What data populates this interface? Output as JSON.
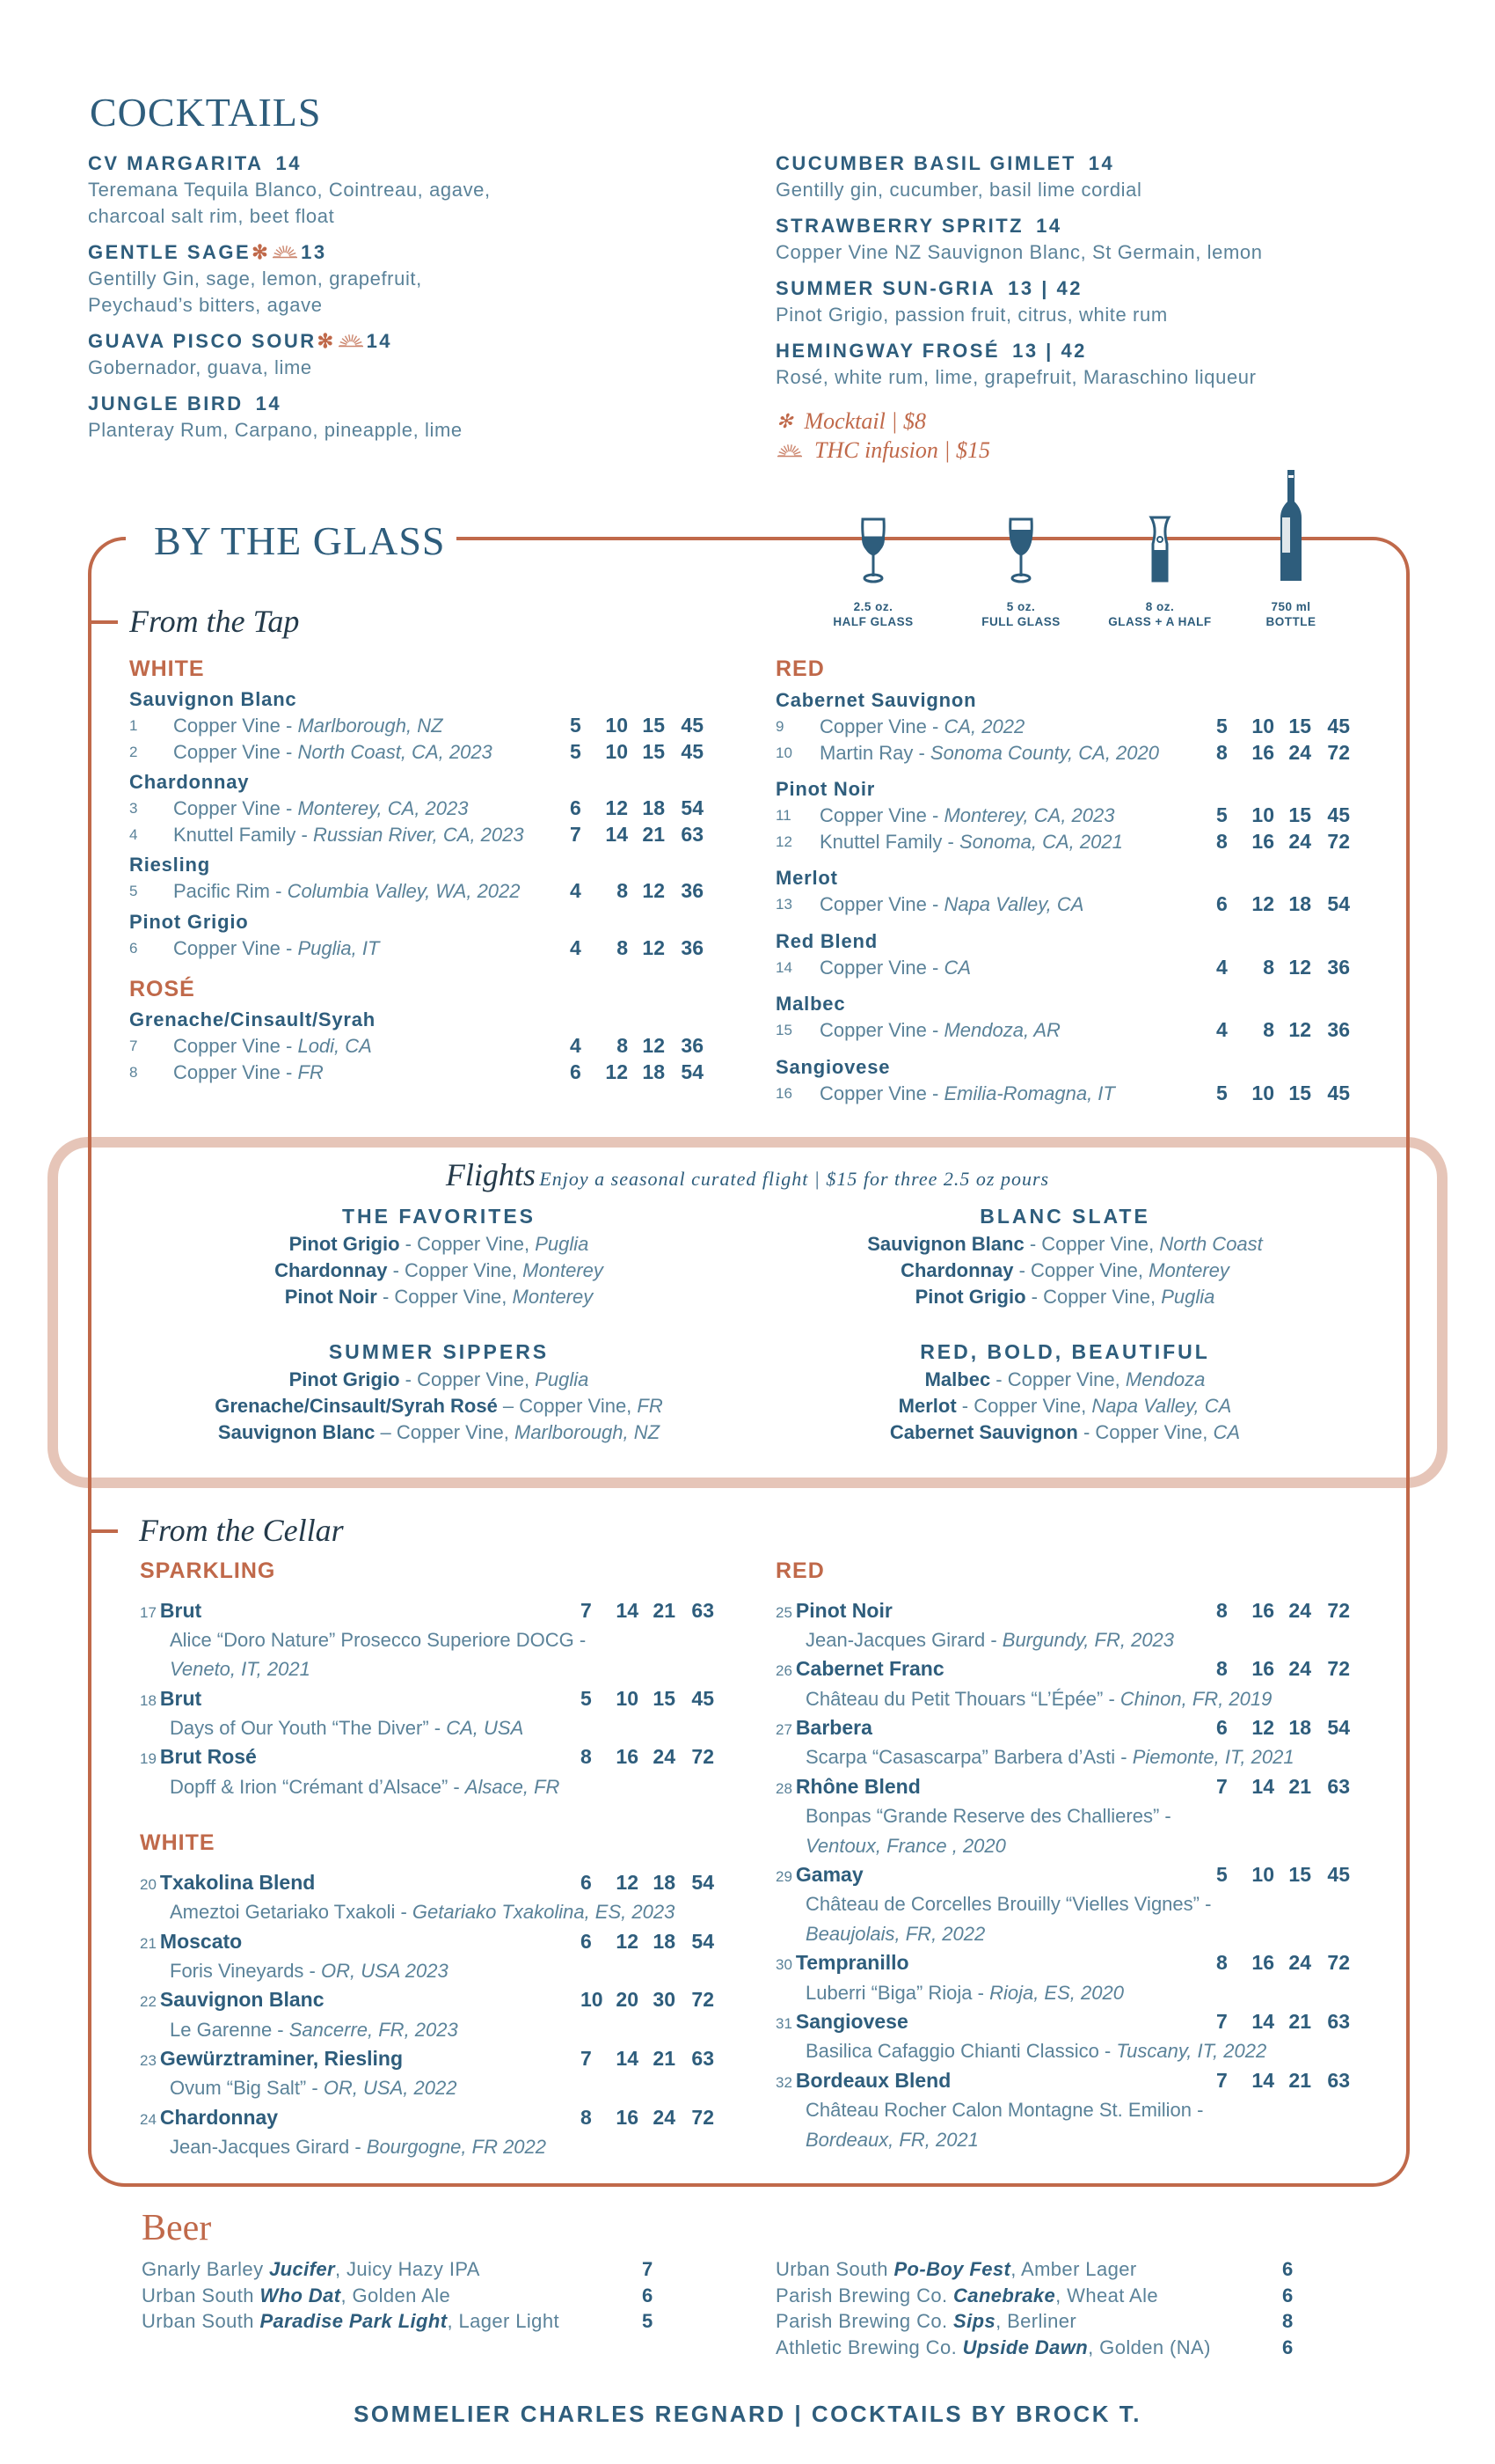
{
  "colors": {
    "blue": "#2e5d7c",
    "copper": "#c0694a",
    "flight_border": "#e6c5b8"
  },
  "cocktails": {
    "title": "COCKTAILS",
    "left": [
      {
        "name": "CV MARGARITA",
        "markers": [],
        "price": "14",
        "desc": [
          "Teremana Tequila Blanco, Cointreau, agave,",
          "charcoal salt rim, beet float"
        ]
      },
      {
        "name": "GENTLE SAGE",
        "markers": [
          "mocktail",
          "thc"
        ],
        "price": "13",
        "desc": [
          "Gentilly Gin, sage, lemon, grapefruit,",
          "Peychaud’s bitters, agave"
        ]
      },
      {
        "name": "GUAVA PISCO SOUR",
        "markers": [
          "mocktail",
          "thc"
        ],
        "price": "14",
        "desc": [
          "Gobernador, guava, lime"
        ]
      },
      {
        "name": "JUNGLE BIRD",
        "markers": [],
        "price": "14",
        "desc": [
          "Planteray Rum, Carpano, pineapple, lime"
        ]
      }
    ],
    "right": [
      {
        "name": "CUCUMBER BASIL GIMLET",
        "markers": [],
        "price": "14",
        "desc": [
          "Gentilly gin, cucumber, basil lime cordial"
        ]
      },
      {
        "name": "STRAWBERRY SPRITZ",
        "markers": [],
        "price": "14",
        "desc": [
          "Copper Vine NZ Sauvignon Blanc, St Germain, lemon"
        ]
      },
      {
        "name": "SUMMER SUN-GRIA",
        "markers": [],
        "price": "13 | 42",
        "desc": [
          "Pinot Grigio, passion fruit, citrus, white rum"
        ]
      },
      {
        "name": "HEMINGWAY FROSÉ",
        "markers": [],
        "price": "13 | 42",
        "desc": [
          "Rosé, white rum, lime, grapefruit, Maraschino liqueur"
        ]
      }
    ],
    "legend": [
      {
        "icon": "mocktail",
        "text": "Mocktail | $8"
      },
      {
        "icon": "thc",
        "text": "THC infusion | $15"
      }
    ]
  },
  "by_the_glass": {
    "title": "BY THE GLASS",
    "pours": [
      {
        "icon": "half-glass",
        "size": "2.5 oz.",
        "label": "HALF GLASS",
        "fill": 0.35
      },
      {
        "icon": "full-glass",
        "size": "5 oz.",
        "label": "FULL GLASS",
        "fill": 0.6
      },
      {
        "icon": "carafe",
        "size": "8 oz.",
        "label": "GLASS + A HALF",
        "fill": 0.8
      },
      {
        "icon": "bottle",
        "size": "750 ml",
        "label": "BOTTLE",
        "fill": 1
      }
    ],
    "tap": {
      "title": "From the Tap",
      "left": [
        {
          "category": "WHITE",
          "varietals": [
            {
              "name": "Sauvignon Blanc",
              "rows": [
                {
                  "num": "1",
                  "producer": "Copper Vine - ",
                  "region": "Marlborough, NZ",
                  "prices": [
                    5,
                    10,
                    15,
                    45
                  ]
                },
                {
                  "num": "2",
                  "producer": "Copper Vine - ",
                  "region": "North Coast, CA, 2023",
                  "prices": [
                    5,
                    10,
                    15,
                    45
                  ]
                }
              ]
            },
            {
              "name": "Chardonnay",
              "rows": [
                {
                  "num": "3",
                  "producer": "Copper Vine - ",
                  "region": "Monterey, CA, 2023",
                  "prices": [
                    6,
                    12,
                    18,
                    54
                  ]
                },
                {
                  "num": "4",
                  "producer": "Knuttel Family - ",
                  "region": "Russian River, CA, 2023",
                  "prices": [
                    7,
                    14,
                    21,
                    63
                  ]
                }
              ]
            },
            {
              "name": "Riesling",
              "rows": [
                {
                  "num": "5",
                  "producer": "Pacific Rim - ",
                  "region": "Columbia Valley, WA, 2022",
                  "prices": [
                    4,
                    8,
                    12,
                    36
                  ]
                }
              ]
            },
            {
              "name": "Pinot Grigio",
              "rows": [
                {
                  "num": "6",
                  "producer": "Copper Vine - ",
                  "region": "Puglia, IT",
                  "prices": [
                    4,
                    8,
                    12,
                    36
                  ]
                }
              ]
            }
          ]
        },
        {
          "category": "ROSÉ",
          "varietals": [
            {
              "name": "Grenache/Cinsault/Syrah",
              "rows": [
                {
                  "num": "7",
                  "producer": "Copper Vine - ",
                  "region": "Lodi, CA",
                  "prices": [
                    4,
                    8,
                    12,
                    36
                  ]
                },
                {
                  "num": "8",
                  "producer": "Copper Vine - ",
                  "region": "FR",
                  "prices": [
                    6,
                    12,
                    18,
                    54
                  ]
                }
              ]
            }
          ]
        }
      ],
      "right": [
        {
          "category": "RED",
          "varietals": [
            {
              "name": "Cabernet Sauvignon",
              "rows": [
                {
                  "num": "9",
                  "producer": "Copper Vine - ",
                  "region": "CA, 2022",
                  "prices": [
                    5,
                    10,
                    15,
                    45
                  ]
                },
                {
                  "num": "10",
                  "producer": "Martin Ray - ",
                  "region": "Sonoma County, CA, 2020",
                  "prices": [
                    8,
                    16,
                    24,
                    72
                  ]
                }
              ]
            },
            {
              "name": "Pinot Noir",
              "rows": [
                {
                  "num": "11",
                  "producer": "Copper Vine - ",
                  "region": "Monterey, CA, 2023",
                  "prices": [
                    5,
                    10,
                    15,
                    45
                  ]
                },
                {
                  "num": "12",
                  "producer": "Knuttel Family - ",
                  "region": "Sonoma, CA, 2021",
                  "prices": [
                    8,
                    16,
                    24,
                    72
                  ]
                }
              ]
            },
            {
              "name": "Merlot",
              "rows": [
                {
                  "num": "13",
                  "producer": "Copper Vine - ",
                  "region": "Napa Valley, CA",
                  "prices": [
                    6,
                    12,
                    18,
                    54
                  ]
                }
              ]
            },
            {
              "name": "Red Blend",
              "rows": [
                {
                  "num": "14",
                  "producer": "Copper Vine - ",
                  "region": "CA",
                  "prices": [
                    4,
                    8,
                    12,
                    36
                  ]
                }
              ]
            },
            {
              "name": "Malbec",
              "rows": [
                {
                  "num": "15",
                  "producer": "Copper Vine - ",
                  "region": "Mendoza, AR",
                  "prices": [
                    4,
                    8,
                    12,
                    36
                  ]
                }
              ]
            },
            {
              "name": "Sangiovese",
              "rows": [
                {
                  "num": "16",
                  "producer": "Copper Vine - ",
                  "region": "Emilia-Romagna, IT",
                  "prices": [
                    5,
                    10,
                    15,
                    45
                  ]
                }
              ]
            }
          ]
        }
      ]
    },
    "flights": {
      "title": "Flights",
      "subtitle": "Enjoy a seasonal curated flight | $15 for three 2.5 oz pours",
      "groups": [
        {
          "name": "THE FAVORITES",
          "items": [
            {
              "varietal": "Pinot Grigio",
              "producer": " - Copper Vine, ",
              "region": "Puglia"
            },
            {
              "varietal": "Chardonnay",
              "producer": " - Copper Vine, ",
              "region": "Monterey"
            },
            {
              "varietal": "Pinot Noir",
              "producer": " - Copper Vine, ",
              "region": "Monterey"
            }
          ]
        },
        {
          "name": "BLANC SLATE",
          "items": [
            {
              "varietal": "Sauvignon Blanc",
              "producer": " - Copper Vine, ",
              "region": "North Coast"
            },
            {
              "varietal": "Chardonnay",
              "producer": " - Copper Vine, ",
              "region": "Monterey"
            },
            {
              "varietal": "Pinot Grigio",
              "producer": " - Copper Vine, ",
              "region": "Puglia"
            }
          ]
        },
        {
          "name": "SUMMER SIPPERS",
          "items": [
            {
              "varietal": "Pinot Grigio",
              "producer": " - Copper Vine, ",
              "region": "Puglia"
            },
            {
              "varietal": "Grenache/Cinsault/Syrah Rosé",
              "producer": " – Copper Vine, ",
              "region": "FR"
            },
            {
              "varietal": "Sauvignon Blanc",
              "producer": " – Copper Vine, ",
              "region": "Marlborough, NZ"
            }
          ]
        },
        {
          "name": "RED, BOLD, BEAUTIFUL",
          "items": [
            {
              "varietal": "Malbec",
              "producer": " - Copper Vine, ",
              "region": "Mendoza"
            },
            {
              "varietal": "Merlot",
              "producer": " - Copper Vine, ",
              "region": "Napa Valley, CA"
            },
            {
              "varietal": "Cabernet Sauvignon",
              "producer": " - Copper Vine, ",
              "region": "CA"
            }
          ]
        }
      ]
    },
    "cellar": {
      "title": "From the Cellar",
      "left": [
        {
          "category": "SPARKLING",
          "wines": [
            {
              "num": "17",
              "name": "Brut",
              "prices": [
                7,
                14,
                21,
                63
              ],
              "desc": [
                {
                  "t": "Alice “Doro Nature” Prosecco Superiore DOCG -",
                  "i": ""
                },
                {
                  "t": "",
                  "i": "Veneto, IT, 2021"
                }
              ]
            },
            {
              "num": "18",
              "name": "Brut",
              "prices": [
                5,
                10,
                15,
                45
              ],
              "desc": [
                {
                  "t": "Days of Our Youth “The Diver”  - ",
                  "i": "CA, USA"
                }
              ]
            },
            {
              "num": "19",
              "name": "Brut Rosé",
              "prices": [
                8,
                16,
                24,
                72
              ],
              "desc": [
                {
                  "t": "Dopff & Irion “Crémant d’Alsace” - ",
                  "i": "Alsace, FR"
                }
              ]
            }
          ]
        },
        {
          "category": "WHITE",
          "wines": [
            {
              "num": "20",
              "name": "Txakolina Blend",
              "prices": [
                6,
                12,
                18,
                54
              ],
              "desc": [
                {
                  "t": "Ameztoi Getariako Txakoli - ",
                  "i": "Getariako Txakolina, ES, 2023"
                }
              ]
            },
            {
              "num": "21",
              "name": "Moscato",
              "prices": [
                6,
                12,
                18,
                54
              ],
              "desc": [
                {
                  "t": "Foris Vineyards - ",
                  "i": "OR, USA 2023"
                }
              ]
            },
            {
              "num": "22",
              "name": "Sauvignon Blanc",
              "prices": [
                10,
                20,
                30,
                72
              ],
              "desc": [
                {
                  "t": "Le Garenne - ",
                  "i": "Sancerre, FR, 2023"
                }
              ]
            },
            {
              "num": "23",
              "name": "Gewürztraminer, Riesling",
              "prices": [
                7,
                14,
                21,
                63
              ],
              "desc": [
                {
                  "t": "Ovum “Big Salt” - ",
                  "i": "OR, USA, 2022"
                }
              ]
            },
            {
              "num": "24",
              "name": "Chardonnay",
              "prices": [
                8,
                16,
                24,
                72
              ],
              "desc": [
                {
                  "t": "Jean-Jacques Girard  - ",
                  "i": "Bourgogne, FR 2022"
                }
              ]
            }
          ]
        }
      ],
      "right": [
        {
          "category": "RED",
          "wines": [
            {
              "num": "25",
              "name": "Pinot Noir",
              "prices": [
                8,
                16,
                24,
                72
              ],
              "desc": [
                {
                  "t": "Jean-Jacques Girard - ",
                  "i": "Burgundy, FR, 2023"
                }
              ]
            },
            {
              "num": "26",
              "name": "Cabernet Franc",
              "prices": [
                8,
                16,
                24,
                72
              ],
              "desc": [
                {
                  "t": "Château du Petit Thouars “L’Épée” - ",
                  "i": "Chinon, FR, 2019"
                }
              ]
            },
            {
              "num": "27",
              "name": "Barbera",
              "prices": [
                6,
                12,
                18,
                54
              ],
              "desc": [
                {
                  "t": "Scarpa “Casascarpa”  Barbera d’Asti - ",
                  "i": "Piemonte, IT, 2021"
                }
              ]
            },
            {
              "num": "28",
              "name": "Rhône Blend",
              "prices": [
                7,
                14,
                21,
                63
              ],
              "desc": [
                {
                  "t": "Bonpas “Grande Reserve des Challieres” -",
                  "i": ""
                },
                {
                  "t": "",
                  "i": "Ventoux, France , 2020"
                }
              ]
            },
            {
              "num": "29",
              "name": "Gamay",
              "prices": [
                5,
                10,
                15,
                45
              ],
              "desc": [
                {
                  "t": "Château de Corcelles Brouilly “Vielles Vignes” -",
                  "i": ""
                },
                {
                  "t": "",
                  "i": "Beaujolais, FR, 2022"
                }
              ]
            },
            {
              "num": "30",
              "name": "Tempranillo",
              "prices": [
                8,
                16,
                24,
                72
              ],
              "desc": [
                {
                  "t": "Luberri “Biga”  Rioja - ",
                  "i": "Rioja, ES, 2020"
                }
              ]
            },
            {
              "num": "31",
              "name": "Sangiovese",
              "prices": [
                7,
                14,
                21,
                63
              ],
              "desc": [
                {
                  "t": "Basilica Cafaggio Chianti Classico  - ",
                  "i": "Tuscany, IT, 2022"
                }
              ]
            },
            {
              "num": "32",
              "name": "Bordeaux Blend",
              "prices": [
                7,
                14,
                21,
                63
              ],
              "desc": [
                {
                  "t": "Château Rocher Calon Montagne St. Emilion -",
                  "i": ""
                },
                {
                  "t": "",
                  "i": "Bordeaux, FR, 2021"
                }
              ]
            }
          ]
        }
      ]
    }
  },
  "beer": {
    "title": "Beer",
    "left": [
      {
        "brewery": "Gnarly Barley ",
        "beer": "Jucifer",
        "style": ", Juicy Hazy IPA",
        "price": "7"
      },
      {
        "brewery": "Urban South ",
        "beer": "Who Dat",
        "style": ", Golden Ale",
        "price": "6"
      },
      {
        "brewery": "Urban South ",
        "beer": "Paradise Park Light",
        "style": ", Lager Light",
        "price": "5"
      }
    ],
    "right": [
      {
        "brewery": "Urban South ",
        "beer": "Po-Boy Fest",
        "style": ", Amber Lager",
        "price": "6"
      },
      {
        "brewery": "Parish Brewing Co. ",
        "beer": "Canebrake",
        "style": ", Wheat Ale",
        "price": "6"
      },
      {
        "brewery": "Parish Brewing Co. ",
        "beer": "Sips",
        "style": ", Berliner",
        "price": "8"
      },
      {
        "brewery": "Athletic Brewing Co. ",
        "beer": "Upside Dawn",
        "style": ", Golden (NA)",
        "price": "6"
      }
    ]
  },
  "footer": "SOMMELIER CHARLES REGNARD | COCKTAILS BY BROCK T."
}
